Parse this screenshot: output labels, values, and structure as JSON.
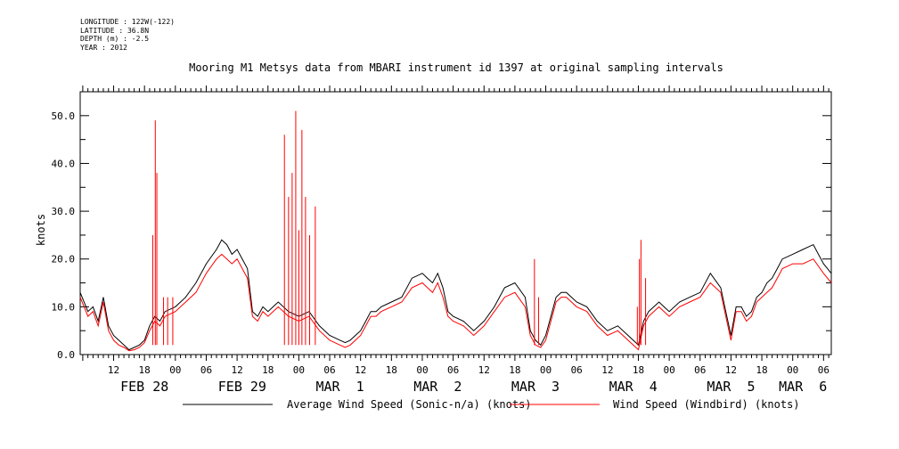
{
  "header": {
    "meta": [
      "LONGITUDE : 122W(-122)",
      "LATITUDE : 36.8N",
      "DEPTH (m) : -2.5",
      "YEAR : 2012"
    ]
  },
  "chart_data": {
    "type": "line",
    "title": "Mooring M1 Metsys data from MBARI instrument id 1397 at original sampling intervals",
    "ylabel": "knots",
    "xlabel": "",
    "ylim": [
      0,
      55
    ],
    "y_ticks": [
      0.0,
      10.0,
      20.0,
      30.0,
      40.0,
      50.0
    ],
    "x_unit": "hours since Feb 28 00:00, 2012",
    "xlim": [
      5.5,
      151.5
    ],
    "hour_tick_labels": [
      "12",
      "18",
      "00",
      "06",
      "12",
      "18",
      "00",
      "06",
      "12",
      "18",
      "00",
      "06",
      "12",
      "18",
      "00",
      "06",
      "12",
      "18",
      "00",
      "06",
      "12",
      "18",
      "00",
      "06",
      "12",
      "18",
      "00",
      "06"
    ],
    "hour_tick_positions": [
      12,
      18,
      24,
      30,
      36,
      42,
      48,
      54,
      60,
      66,
      72,
      78,
      84,
      90,
      96,
      102,
      108,
      114,
      120,
      126,
      132,
      138,
      144,
      150,
      156,
      162,
      168,
      174
    ],
    "date_labels": [
      {
        "text": "FEB 28",
        "hour": 18
      },
      {
        "text": "FEB 29",
        "hour": 37
      },
      {
        "text": "MAR  1",
        "hour": 56
      },
      {
        "text": "MAR  2",
        "hour": 75
      },
      {
        "text": "MAR  3",
        "hour": 94
      },
      {
        "text": "MAR  4",
        "hour": 113
      },
      {
        "text": "MAR  5",
        "hour": 132
      },
      {
        "text": "MAR  6",
        "hour": 146
      }
    ],
    "series": [
      {
        "name": "Average Wind Speed (Sonic-n/a) (knots)",
        "color": "#000000",
        "x": [
          5.5,
          7,
          8,
          9,
          10,
          11,
          12,
          13,
          14,
          15,
          16,
          17,
          18,
          19,
          20,
          21,
          22,
          24,
          26,
          28,
          30,
          32,
          33,
          34,
          35,
          36,
          37,
          38,
          39,
          40,
          41,
          42,
          43,
          44,
          46,
          48,
          50,
          52,
          54,
          56,
          57,
          58,
          59,
          60,
          61,
          62,
          63,
          64,
          66,
          68,
          70,
          72,
          73,
          74,
          75,
          76,
          77,
          78,
          80,
          82,
          84,
          86,
          88,
          90,
          92,
          93,
          94,
          95,
          96,
          97,
          98,
          99,
          100,
          101,
          102,
          104,
          106,
          108,
          110,
          112,
          113,
          114,
          115,
          116,
          117,
          118,
          119,
          120,
          122,
          124,
          126,
          128,
          130,
          131,
          132,
          133,
          134,
          135,
          136,
          137,
          138,
          139,
          140,
          141,
          142,
          144,
          146,
          148,
          150,
          151.5
        ],
        "y": [
          13,
          9,
          10,
          7,
          12,
          6,
          4,
          3,
          2,
          1,
          1.5,
          2,
          3,
          6,
          8,
          7,
          9,
          10,
          12,
          15,
          19,
          22,
          24,
          23,
          21,
          22,
          20,
          18,
          9,
          8,
          10,
          9,
          10,
          11,
          9,
          8,
          9,
          6,
          4,
          3,
          2.5,
          3,
          4,
          5,
          7,
          9,
          9,
          10,
          11,
          12,
          16,
          17,
          16,
          15,
          17,
          14,
          9,
          8,
          7,
          5,
          7,
          10,
          14,
          15,
          12,
          5,
          3,
          2,
          4,
          8,
          12,
          13,
          13,
          12,
          11,
          10,
          7,
          5,
          6,
          4,
          3,
          2,
          7,
          9,
          10,
          11,
          10,
          9,
          11,
          12,
          13,
          17,
          14,
          9,
          4,
          10,
          10,
          8,
          9,
          12,
          13,
          15,
          16,
          18,
          20,
          21,
          22,
          23,
          19,
          17
        ]
      },
      {
        "name": "Wind Speed (Windbird) (knots)",
        "color": "#ff0000",
        "x": [
          5.5,
          7,
          8,
          9,
          10,
          11,
          12,
          13,
          14,
          15,
          16,
          17,
          18,
          19,
          20,
          21,
          22,
          24,
          26,
          28,
          30,
          32,
          33,
          34,
          35,
          36,
          37,
          38,
          39,
          40,
          41,
          42,
          43,
          44,
          46,
          48,
          50,
          52,
          54,
          56,
          57,
          58,
          59,
          60,
          61,
          62,
          63,
          64,
          66,
          68,
          70,
          72,
          73,
          74,
          75,
          76,
          77,
          78,
          80,
          82,
          84,
          86,
          88,
          90,
          92,
          93,
          94,
          95,
          96,
          97,
          98,
          99,
          100,
          101,
          102,
          104,
          106,
          108,
          110,
          112,
          113,
          114,
          115,
          116,
          117,
          118,
          119,
          120,
          122,
          124,
          126,
          128,
          130,
          131,
          132,
          133,
          134,
          135,
          136,
          137,
          138,
          139,
          140,
          141,
          142,
          144,
          146,
          148,
          150,
          151.5
        ],
        "y": [
          12,
          8,
          9,
          6,
          11,
          5,
          3,
          2,
          1.5,
          0.8,
          1,
          1.5,
          2.5,
          5,
          7,
          6,
          8,
          9,
          11,
          13,
          17,
          20,
          21,
          20,
          19,
          20,
          18,
          16,
          8,
          7,
          9,
          8,
          9,
          10,
          8,
          7,
          8,
          5,
          3,
          2,
          1.5,
          2,
          3,
          4,
          6,
          8,
          8,
          9,
          10,
          11,
          14,
          15,
          14,
          13,
          15,
          12,
          8,
          7,
          6,
          4,
          6,
          9,
          12,
          13,
          10,
          4,
          2,
          1.5,
          3,
          7,
          11,
          12,
          12,
          11,
          10,
          9,
          6,
          4,
          5,
          3,
          2,
          1,
          6,
          8,
          9,
          10,
          9,
          8,
          10,
          11,
          12,
          15,
          13,
          8,
          3,
          9,
          9,
          7,
          8,
          11,
          12,
          13,
          14,
          16,
          18,
          19,
          19,
          20,
          17,
          15
        ]
      }
    ],
    "spikes": {
      "name": "Wind Speed (Windbird) (knots)",
      "color": "#ff0000",
      "x": [
        19.6,
        20.1,
        20.4,
        21.7,
        22.5,
        23.5,
        45.2,
        46.0,
        46.7,
        47.4,
        48.0,
        48.6,
        49.3,
        50.1,
        51.2,
        93.8,
        94.6,
        113.8,
        114.2,
        114.5,
        115.4
      ],
      "y": [
        25,
        49,
        38,
        12,
        12,
        12,
        46,
        33,
        38,
        51,
        26,
        47,
        33,
        25,
        31,
        20,
        12,
        10,
        20,
        24,
        16
      ]
    },
    "grid": false
  },
  "legend": {
    "items": [
      {
        "label": "Average Wind Speed (Sonic-n/a) (knots)",
        "color": "#000000"
      },
      {
        "label": "Wind Speed (Windbird) (knots)",
        "color": "#ff0000"
      }
    ]
  }
}
